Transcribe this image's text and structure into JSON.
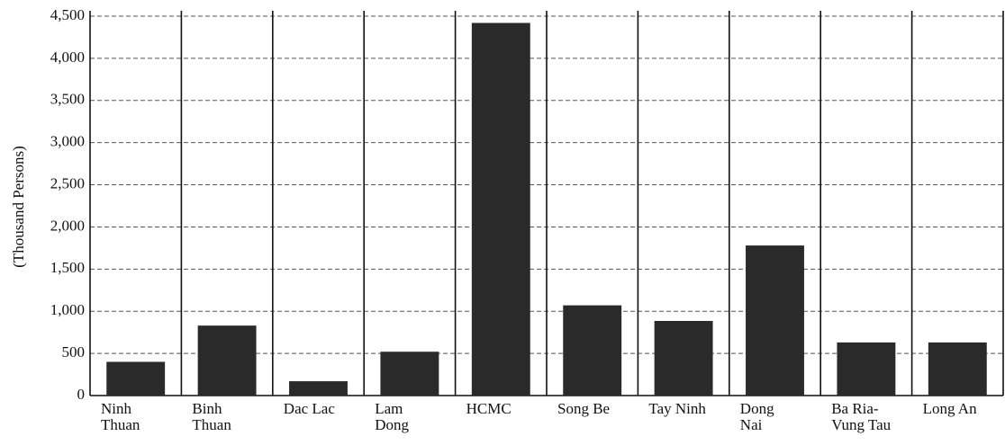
{
  "chart_data": {
    "type": "bar",
    "y_axis_label": "(Thousand Persons)",
    "categories": [
      "Ninh\nThuan",
      "Binh\nThuan",
      "Dac Lac",
      "Lam\nDong",
      "HCMC",
      "Song Be",
      "Tay Ninh",
      "Dong\nNai",
      "Ba Ria-\nVung Tau",
      "Long An"
    ],
    "values": [
      400,
      830,
      170,
      520,
      4420,
      1070,
      885,
      1780,
      630,
      630
    ],
    "color": "#2a2a2a",
    "ylim": [
      0,
      4500
    ],
    "yticks": [
      0,
      500,
      {
        "value": 1000,
        "label": "1,000"
      },
      {
        "value": 1500,
        "label": "1,500"
      },
      {
        "value": 2000,
        "label": "2,000"
      },
      {
        "value": 2500,
        "label": "2,500"
      },
      {
        "value": 3000,
        "label": "3,000"
      },
      {
        "value": 3500,
        "label": "3,500"
      },
      {
        "value": 4000,
        "label": "4,000"
      },
      {
        "value": 4500,
        "label": "4,500"
      }
    ],
    "grid": true
  }
}
